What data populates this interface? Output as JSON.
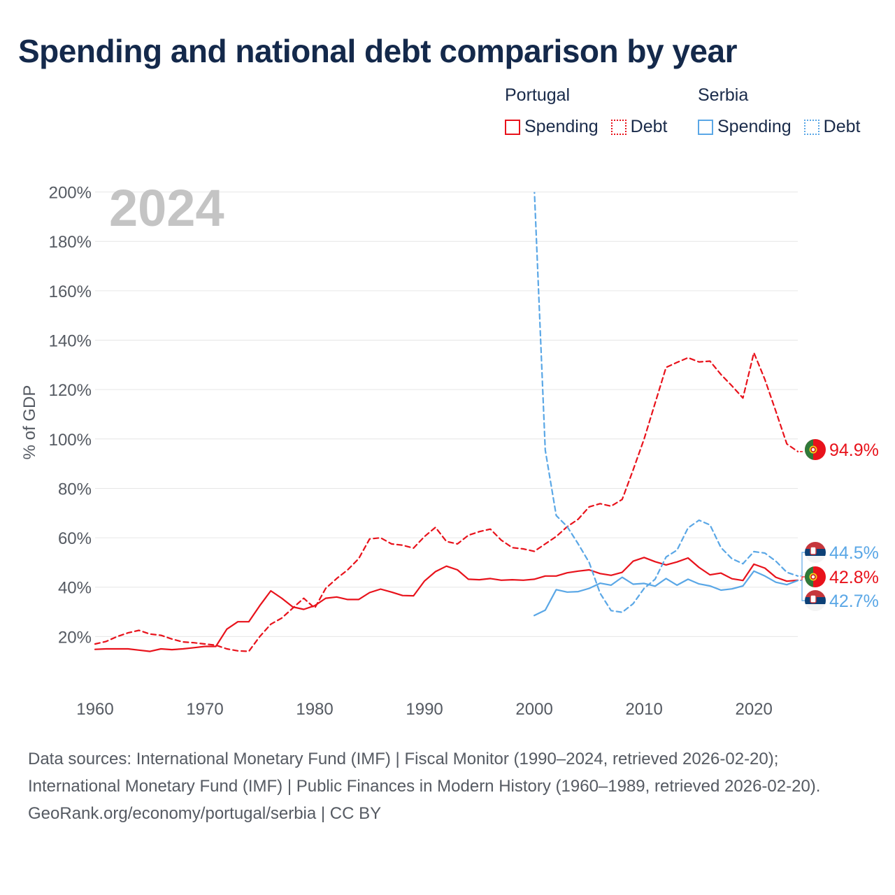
{
  "title": "Spending and national debt comparison by year",
  "legend": {
    "groups": [
      {
        "country": "Portugal",
        "items": [
          "Spending",
          "Debt"
        ]
      },
      {
        "country": "Serbia",
        "items": [
          "Spending",
          "Debt"
        ]
      }
    ]
  },
  "colors": {
    "portugal": "#e8121b",
    "serbia": "#5aa7e6",
    "grid": "#e6e6e6",
    "axis_text": "#555a62",
    "year_label": "#c4c4c4"
  },
  "chart_data": {
    "type": "line",
    "year_label": "2024",
    "ylabel": "% of GDP",
    "xlim": [
      1960,
      2024
    ],
    "ylim": [
      0,
      200
    ],
    "x_ticks": [
      1960,
      1970,
      1980,
      1990,
      2000,
      2010,
      2020
    ],
    "y_ticks": [
      20,
      40,
      60,
      80,
      100,
      120,
      140,
      160,
      180,
      200
    ],
    "y_tick_labels": [
      "20%",
      "40%",
      "60%",
      "80%",
      "100%",
      "120%",
      "140%",
      "160%",
      "180%",
      "200%"
    ],
    "series": [
      {
        "name": "Portugal Spending",
        "country": "Portugal",
        "style": "solid",
        "color": "#e8121b",
        "x": [
          1960,
          1961,
          1962,
          1963,
          1964,
          1965,
          1966,
          1967,
          1968,
          1969,
          1970,
          1971,
          1972,
          1973,
          1974,
          1975,
          1976,
          1977,
          1978,
          1979,
          1980,
          1981,
          1982,
          1983,
          1984,
          1985,
          1986,
          1987,
          1988,
          1989,
          1990,
          1991,
          1992,
          1993,
          1994,
          1995,
          1996,
          1997,
          1998,
          1999,
          2000,
          2001,
          2002,
          2003,
          2004,
          2005,
          2006,
          2007,
          2008,
          2009,
          2010,
          2011,
          2012,
          2013,
          2014,
          2015,
          2016,
          2017,
          2018,
          2019,
          2020,
          2021,
          2022,
          2023,
          2024
        ],
        "values": [
          14.8,
          15.0,
          15.0,
          15.0,
          14.5,
          14.0,
          15.0,
          14.7,
          15.0,
          15.5,
          16.0,
          16.0,
          23.0,
          26.0,
          26.0,
          32.5,
          38.5,
          35.5,
          32.0,
          31.0,
          32.5,
          35.5,
          36.0,
          35.0,
          35.0,
          37.8,
          39.2,
          38.0,
          36.6,
          36.5,
          42.5,
          46.3,
          48.5,
          47.0,
          43.2,
          43.0,
          43.5,
          42.8,
          43.0,
          42.8,
          43.2,
          44.5,
          44.5,
          45.8,
          46.5,
          47.0,
          45.5,
          44.8,
          46.0,
          50.5,
          52.0,
          50.3,
          49.0,
          50.2,
          51.8,
          48.0,
          45.0,
          45.7,
          43.4,
          42.7,
          49.3,
          47.7,
          44.0,
          42.4,
          42.8
        ],
        "end_label": "42.8%"
      },
      {
        "name": "Portugal Debt",
        "country": "Portugal",
        "style": "dashed",
        "color": "#e8121b",
        "x": [
          1960,
          1961,
          1962,
          1963,
          1964,
          1965,
          1966,
          1967,
          1968,
          1969,
          1970,
          1971,
          1972,
          1973,
          1974,
          1975,
          1976,
          1977,
          1978,
          1979,
          1980,
          1981,
          1982,
          1983,
          1984,
          1985,
          1986,
          1987,
          1988,
          1989,
          1990,
          1991,
          1992,
          1993,
          1994,
          1995,
          1996,
          1997,
          1998,
          1999,
          2000,
          2001,
          2002,
          2003,
          2004,
          2005,
          2006,
          2007,
          2008,
          2009,
          2010,
          2011,
          2012,
          2013,
          2014,
          2015,
          2016,
          2017,
          2018,
          2019,
          2020,
          2021,
          2022,
          2023,
          2024
        ],
        "values": [
          17.0,
          18.0,
          20.0,
          21.5,
          22.5,
          21.0,
          20.5,
          19.0,
          17.8,
          17.5,
          17.0,
          16.5,
          15.0,
          14.2,
          14.0,
          20.0,
          25.0,
          27.5,
          31.5,
          35.5,
          31.5,
          39.5,
          43.5,
          47.0,
          51.5,
          59.5,
          60.0,
          57.5,
          57.0,
          55.8,
          60.5,
          64.2,
          58.5,
          57.5,
          61.0,
          62.5,
          63.5,
          59.0,
          56.0,
          55.5,
          54.5,
          57.5,
          60.5,
          64.5,
          67.5,
          72.5,
          73.8,
          72.8,
          75.5,
          87.5,
          100.0,
          114.5,
          129.0,
          131.0,
          132.9,
          131.2,
          131.5,
          126.1,
          121.5,
          116.6,
          134.9,
          124.1,
          111.2,
          98.0,
          94.9
        ],
        "end_label": "94.9%"
      },
      {
        "name": "Serbia Spending",
        "country": "Serbia",
        "style": "solid",
        "color": "#5aa7e6",
        "x": [
          2000,
          2001,
          2002,
          2003,
          2004,
          2005,
          2006,
          2007,
          2008,
          2009,
          2010,
          2011,
          2012,
          2013,
          2014,
          2015,
          2016,
          2017,
          2018,
          2019,
          2020,
          2021,
          2022,
          2023,
          2024
        ],
        "values": [
          28.5,
          30.7,
          39.0,
          38.0,
          38.2,
          39.5,
          41.6,
          40.8,
          44.0,
          41.2,
          41.5,
          40.4,
          43.5,
          40.8,
          43.2,
          41.3,
          40.5,
          38.8,
          39.3,
          40.5,
          46.5,
          44.5,
          42.0,
          41.0,
          42.7
        ],
        "end_label": "42.7%"
      },
      {
        "name": "Serbia Debt",
        "country": "Serbia",
        "style": "dashed",
        "color": "#5aa7e6",
        "x": [
          2000,
          2001,
          2002,
          2003,
          2004,
          2005,
          2006,
          2007,
          2008,
          2009,
          2010,
          2011,
          2012,
          2013,
          2014,
          2015,
          2016,
          2017,
          2018,
          2019,
          2020,
          2021,
          2022,
          2023,
          2024
        ],
        "values": [
          201.5,
          95.5,
          69.0,
          64.5,
          57.5,
          50.0,
          37.5,
          30.5,
          29.8,
          33.3,
          39.5,
          43.2,
          52.2,
          55.0,
          64.0,
          67.1,
          65.2,
          56.0,
          51.5,
          49.5,
          54.4,
          53.8,
          50.5,
          46.0,
          44.5
        ],
        "end_label": "44.5%"
      }
    ]
  },
  "footer": {
    "sources": "Data sources: International Monetary Fund (IMF) | Fiscal Monitor (1990–2024, retrieved 2026-02-20); International Monetary Fund (IMF) | Public Finances in Modern History (1960–1989, retrieved 2026-02-20).",
    "credit": "GeoRank.org/economy/portugal/serbia | CC BY"
  }
}
